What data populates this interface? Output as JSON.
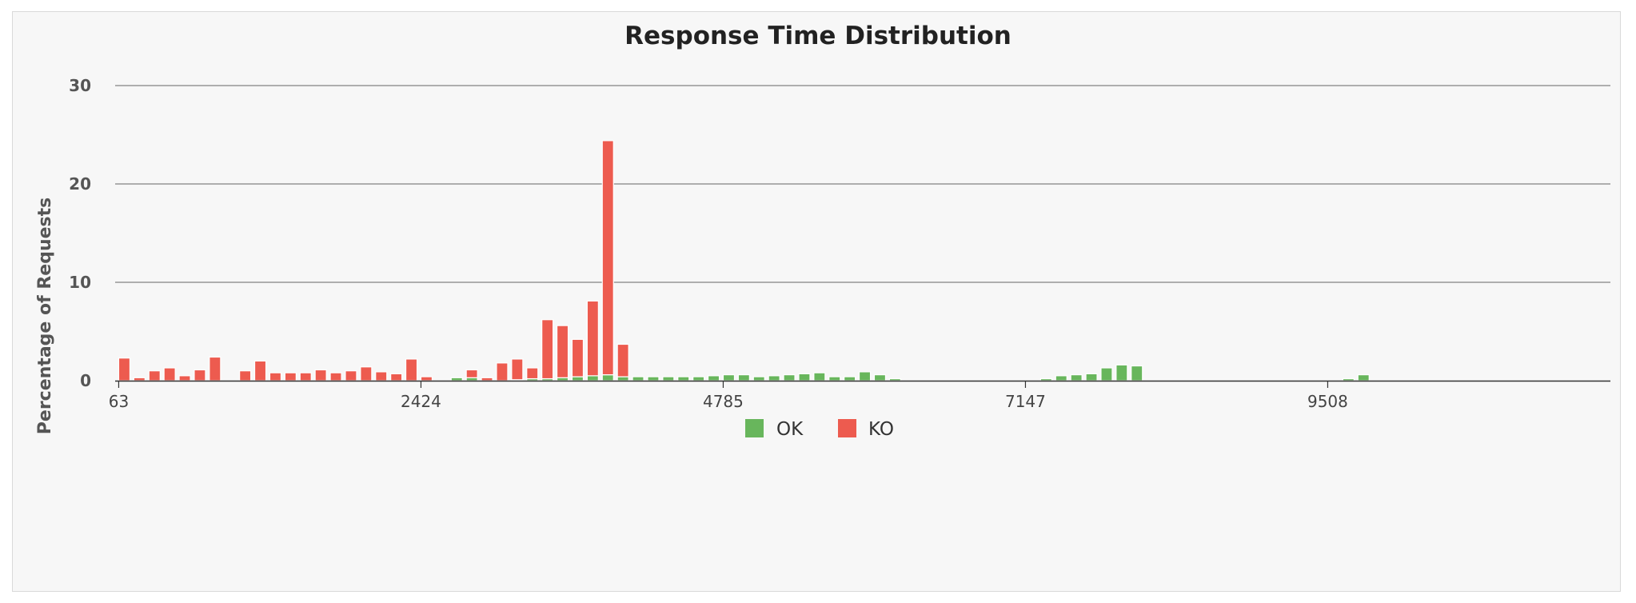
{
  "chart_data": {
    "type": "bar",
    "title": "Response Time Distribution",
    "xlabel": "",
    "ylabel": "Percentage of Requests",
    "ylim": [
      0,
      30
    ],
    "y_ticks": [
      "0",
      "10",
      "20",
      "30"
    ],
    "x_ticks": [
      "63",
      "2424",
      "4785",
      "7147",
      "9508"
    ],
    "x_tick_bins": [
      0,
      20,
      40,
      60,
      80
    ],
    "bin_count": 100,
    "grid": true,
    "legend_position": "bottom",
    "colors": {
      "OK": "#68b65c",
      "KO": "#ed5b4f"
    },
    "series": [
      {
        "name": "OK",
        "values": [
          0.0,
          0.0,
          0.0,
          0.0,
          0.0,
          0.0,
          0.0,
          0.0,
          0.0,
          0.0,
          0.0,
          0.0,
          0.0,
          0.0,
          0.0,
          0.0,
          0.0,
          0.0,
          0.0,
          0.0,
          0.0,
          0.0,
          0.3,
          0.3,
          0.0,
          0.0,
          0.1,
          0.2,
          0.2,
          0.3,
          0.4,
          0.5,
          0.6,
          0.4,
          0.4,
          0.4,
          0.4,
          0.4,
          0.4,
          0.5,
          0.6,
          0.6,
          0.4,
          0.5,
          0.6,
          0.7,
          0.8,
          0.4,
          0.4,
          0.9,
          0.6,
          0.2,
          0.0,
          0.0,
          0.0,
          0.0,
          0.0,
          0.0,
          0.0,
          0.0,
          0.0,
          0.2,
          0.5,
          0.6,
          0.7,
          1.3,
          1.6,
          1.5,
          0.0,
          0.0,
          0.0,
          0.0,
          0.0,
          0.0,
          0.0,
          0.0,
          0.0,
          0.0,
          0.0,
          0.0,
          0.0,
          0.2,
          0.6,
          0.0,
          0.0,
          0.0,
          0.0,
          0.0,
          0.0,
          0.0,
          0.0,
          0.0,
          0.0,
          0.0,
          0.0,
          0.0,
          0.0,
          0.0,
          0.0,
          0.0
        ]
      },
      {
        "name": "KO",
        "values": [
          2.3,
          0.3,
          1.0,
          1.3,
          0.5,
          1.1,
          2.4,
          0.0,
          1.0,
          2.0,
          0.8,
          0.8,
          0.8,
          1.1,
          0.8,
          1.0,
          1.4,
          0.9,
          0.7,
          2.2,
          0.4,
          0.0,
          0.0,
          0.8,
          0.3,
          1.8,
          2.1,
          1.1,
          6.0,
          5.3,
          3.8,
          7.6,
          23.8,
          3.3,
          0.0,
          0.0,
          0.0,
          0.0,
          0.0,
          0.0,
          0.0,
          0.0,
          0.0,
          0.0,
          0.0,
          0.0,
          0.0,
          0.0,
          0.0,
          0.0,
          0.0,
          0.0,
          0.0,
          0.0,
          0.0,
          0.0,
          0.0,
          0.0,
          0.0,
          0.0,
          0.0,
          0.0,
          0.0,
          0.0,
          0.0,
          0.0,
          0.0,
          0.0,
          0.0,
          0.0,
          0.0,
          0.0,
          0.0,
          0.0,
          0.0,
          0.0,
          0.0,
          0.0,
          0.0,
          0.0,
          0.0,
          0.0,
          0.0,
          0.0,
          0.0,
          0.0,
          0.0,
          0.0,
          0.0,
          0.0,
          0.0,
          0.0,
          0.0,
          0.0,
          0.0,
          0.0,
          0.0,
          0.0,
          0.0,
          0.0
        ]
      }
    ]
  },
  "legend": {
    "items": [
      {
        "label": "OK"
      },
      {
        "label": "KO"
      }
    ]
  }
}
